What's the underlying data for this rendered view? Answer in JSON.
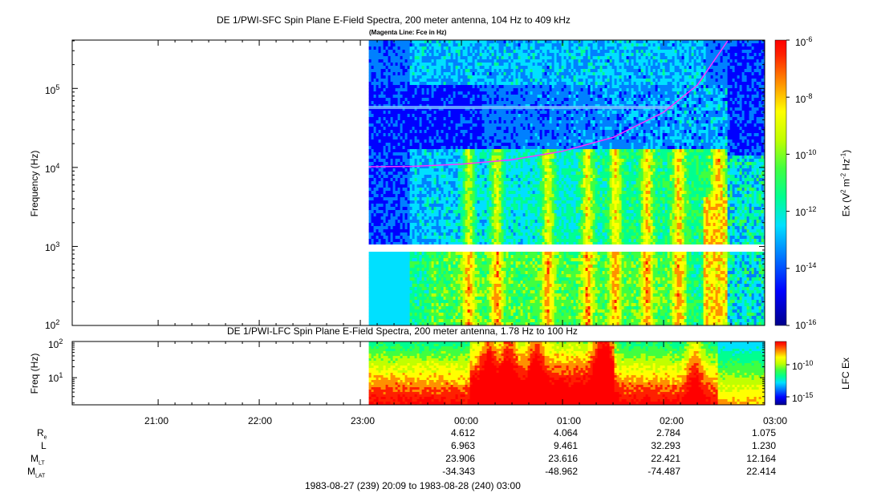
{
  "colors": {
    "magenta": "#ff33ff",
    "colormap": [
      "#00008b",
      "#0000ff",
      "#0080ff",
      "#00e0ff",
      "#00ff90",
      "#40ff40",
      "#c0ff00",
      "#ffff00",
      "#ff9000",
      "#ff2000",
      "#ff0000"
    ]
  },
  "chart_data": [
    {
      "type": "heatmap",
      "title": "DE 1/PWI-SFC  Spin Plane E-Field Spectra, 200 meter antenna, 104 Hz to 409 kHz",
      "subtitle": "(Magenta Line: Fce in Hz)",
      "ylabel": "Frequency (Hz)",
      "yscale": "log",
      "ylim": [
        100,
        409000
      ],
      "y_ticks": [
        "10^5",
        "10^4",
        "10^3",
        "10^2"
      ],
      "x_ticks": [
        "21:00",
        "22:00",
        "23:00",
        "00:00",
        "01:00",
        "02:00",
        "03:00"
      ],
      "data_start": "23:05",
      "colorbar": {
        "label": "Ex (V^2 m^-2 Hz^-1)",
        "scale": "log",
        "range": [
          1e-16,
          1e-06
        ],
        "ticks": [
          "10^-6",
          "10^-8",
          "10^-10",
          "10^-12",
          "10^-14",
          "10^-16"
        ]
      },
      "fce_line": {
        "name": "Fce",
        "x": [
          "23:05",
          "23:30",
          "00:00",
          "00:30",
          "01:00",
          "01:30",
          "02:00",
          "02:20",
          "02:38"
        ],
        "y": [
          10200,
          10300,
          11000,
          12500,
          16000,
          24000,
          50000,
          110000,
          400000
        ]
      }
    },
    {
      "type": "heatmap",
      "title": "DE 1/PWI-LFC  Spin Plane E-Field Spectra, 200 meter antenna, 1.78 Hz to 100 Hz",
      "ylabel": "Freq (Hz)",
      "yscale": "log",
      "ylim": [
        1.78,
        100
      ],
      "y_ticks": [
        "10^2",
        "10^1"
      ],
      "colorbar": {
        "label": "LFC Ex",
        "scale": "log",
        "ticks": [
          "10^-10",
          "10^-15"
        ]
      }
    }
  ],
  "ephemeris": {
    "rows": [
      {
        "label": "R",
        "sub": "e",
        "values": [
          "4.612",
          "4.064",
          "2.784",
          "1.075"
        ]
      },
      {
        "label": "L",
        "sub": "",
        "values": [
          "6.963",
          "9.461",
          "32.293",
          "1.230"
        ]
      },
      {
        "label": "M",
        "sub": "LT",
        "values": [
          "23.906",
          "23.616",
          "22.421",
          "12.164"
        ]
      },
      {
        "label": "M",
        "sub": "LAT",
        "values": [
          "-34.343",
          "-48.962",
          "-74.487",
          "22.414"
        ]
      }
    ]
  },
  "time_range": "1983-08-27 (239) 20:09 to 1983-08-28 (240) 03:00"
}
